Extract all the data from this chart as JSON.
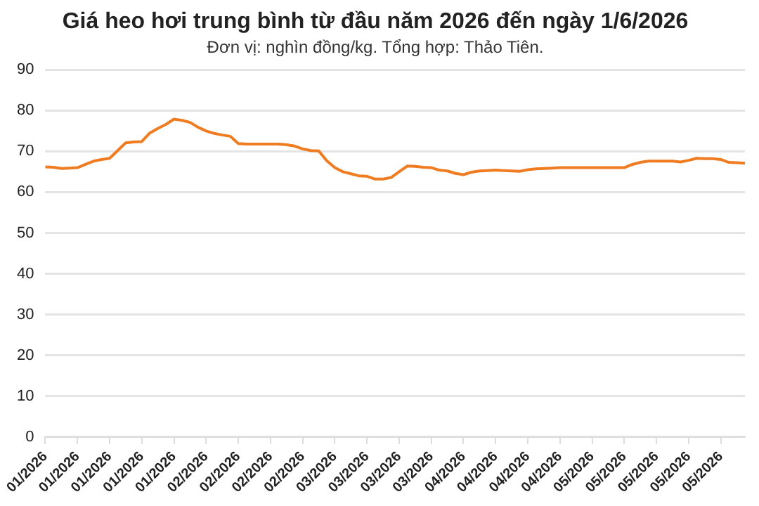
{
  "chart_data": {
    "type": "line",
    "title": "Giá heo hơi trung bình từ đầu năm 2026 đến ngày 1/6/2026",
    "subtitle": "Đơn vị: nghìn đồng/kg. Tổng hợp: Thảo Tiên.",
    "categories": [
      "01/2026",
      null,
      null,
      null,
      "01/2026",
      null,
      null,
      null,
      "01/2026",
      null,
      null,
      null,
      "01/2026",
      null,
      null,
      null,
      "01/2026",
      null,
      null,
      null,
      "02/2026",
      null,
      null,
      null,
      "02/2026",
      null,
      null,
      null,
      "02/2026",
      null,
      null,
      null,
      "02/2026",
      null,
      null,
      null,
      "03/2026",
      null,
      null,
      null,
      "03/2026",
      null,
      null,
      null,
      "03/2026",
      null,
      null,
      null,
      "03/2026",
      null,
      null,
      null,
      "04/2026",
      null,
      null,
      null,
      "04/2026",
      null,
      null,
      null,
      "04/2026",
      null,
      null,
      null,
      "04/2026",
      null,
      null,
      null,
      "05/2026",
      null,
      null,
      null,
      "05/2026",
      null,
      null,
      null,
      "05/2026",
      null,
      null,
      null,
      "05/2026",
      null,
      null,
      null,
      "05/2026",
      null,
      null,
      null
    ],
    "series": [
      {
        "color": "#f07c22",
        "values": [
          66.2,
          66.1,
          65.8,
          65.9,
          66.0,
          66.8,
          67.6,
          68.0,
          68.3,
          70.2,
          72.1,
          72.3,
          72.4,
          74.5,
          75.6,
          76.6,
          77.9,
          77.6,
          77.1,
          75.9,
          75.0,
          74.4,
          74.0,
          73.7,
          71.9,
          71.8,
          71.8,
          71.8,
          71.8,
          71.8,
          71.6,
          71.3,
          70.6,
          70.2,
          70.1,
          67.7,
          66.0,
          65.0,
          64.5,
          64.0,
          63.9,
          63.2,
          63.2,
          63.6,
          65.0,
          66.4,
          66.3,
          66.1,
          66.0,
          65.4,
          65.2,
          64.6,
          64.3,
          64.9,
          65.2,
          65.3,
          65.4,
          65.3,
          65.2,
          65.1,
          65.5,
          65.7,
          65.8,
          65.9,
          66.0,
          66.0,
          66.0,
          66.0,
          66.0,
          66.0,
          66.0,
          66.0,
          66.0,
          66.8,
          67.3,
          67.6,
          67.6,
          67.6,
          67.6,
          67.4,
          67.8,
          68.3,
          68.2,
          68.2,
          68.0,
          67.3,
          67.2,
          67.1
        ]
      }
    ],
    "ylim": [
      0,
      90
    ],
    "yticks": [
      0,
      10,
      20,
      30,
      40,
      50,
      60,
      70,
      80,
      90
    ],
    "grid": "y",
    "legend": false,
    "marker": "none",
    "line_style": "solid"
  }
}
